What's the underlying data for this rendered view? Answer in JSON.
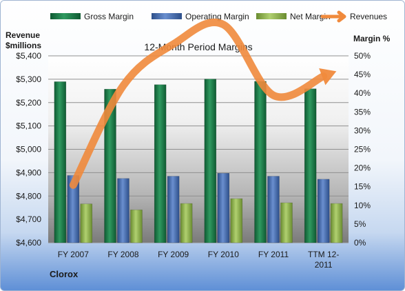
{
  "chart_data": {
    "type": "bar",
    "title": "12-Month Period Margins",
    "company": "Clorox",
    "categories": [
      "FY 2007",
      "FY 2008",
      "FY 2009",
      "FY 2010",
      "FY 2011",
      "TTM 12-2011"
    ],
    "category_label_lines": [
      [
        "FY 2007"
      ],
      [
        "FY 2008"
      ],
      [
        "FY 2009"
      ],
      [
        "FY 2010"
      ],
      [
        "FY 2011"
      ],
      [
        "TTM 12-",
        "2011"
      ]
    ],
    "left_axis": {
      "label_lines": [
        "Revenue",
        "$millions"
      ],
      "range": [
        4600,
        5400
      ],
      "ticks": [
        "$4,600",
        "$4,700",
        "$4,800",
        "$4,900",
        "$5,000",
        "$5,100",
        "$5,200",
        "$5,300",
        "$5,400"
      ]
    },
    "right_axis": {
      "label": "Margin %",
      "range": [
        0,
        50
      ],
      "ticks": [
        "0%",
        "5%",
        "10%",
        "15%",
        "20%",
        "25%",
        "30%",
        "35%",
        "40%",
        "45%",
        "50%"
      ]
    },
    "series": [
      {
        "name": "Gross Margin",
        "kind": "bar",
        "axis": "right",
        "color": "#1f7a4a",
        "values": [
          43.1,
          41.1,
          42.3,
          43.8,
          43.2,
          41.2
        ]
      },
      {
        "name": "Operating Margin",
        "kind": "bar",
        "axis": "right",
        "color": "#4a6fae",
        "values": [
          18.0,
          17.2,
          17.8,
          18.6,
          17.8,
          17.0
        ]
      },
      {
        "name": "Net Margin",
        "kind": "bar",
        "axis": "right",
        "color": "#8db04a",
        "values": [
          10.4,
          8.8,
          10.5,
          11.8,
          10.7,
          10.5
        ]
      },
      {
        "name": "Revenues",
        "kind": "line",
        "axis": "left",
        "color": "#f08a3c",
        "values": [
          4847,
          5273,
          5450,
          5534,
          5231,
          5313
        ]
      }
    ],
    "right_axis_for_line": [
      0,
      50
    ],
    "legend_position": "top",
    "grid": true
  }
}
